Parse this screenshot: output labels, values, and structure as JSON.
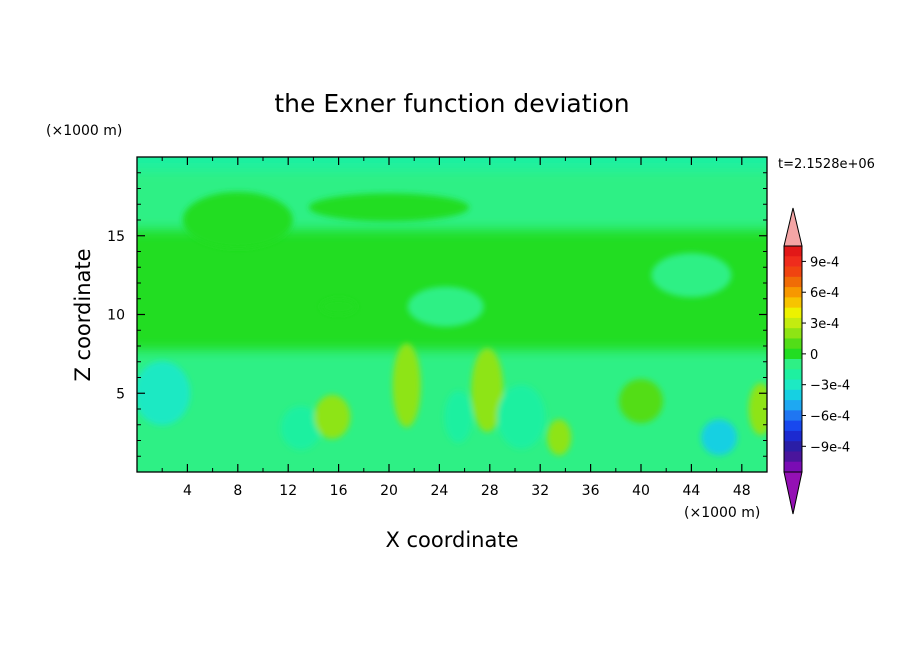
{
  "chart_data": {
    "type": "heatmap",
    "title": "the Exner function deviation",
    "xlabel": "X coordinate",
    "ylabel": "Z coordinate",
    "x_unit": "(×1000 m)",
    "y_unit": "(×1000 m)",
    "time_label": "t=2.1528e+06",
    "xlim": [
      0,
      50
    ],
    "ylim": [
      0,
      20
    ],
    "x_ticks": [
      "4",
      "8",
      "12",
      "16",
      "20",
      "24",
      "28",
      "32",
      "36",
      "40",
      "44",
      "48"
    ],
    "y_ticks": [
      "5",
      "10",
      "15"
    ],
    "colorbar": {
      "min": -0.0011,
      "max": 0.0011,
      "step": 0.0001,
      "labels": [
        "9e-4",
        "6e-4",
        "3e-4",
        "0",
        "−3e-4",
        "−6e-4",
        "−9e-4"
      ],
      "colors": [
        "#7a0cb4",
        "#4a159c",
        "#2a1ea6",
        "#1c2ad0",
        "#1848ee",
        "#1f76f2",
        "#1ea8f2",
        "#16d0e2",
        "#1de9c3",
        "#1ef0a0",
        "#2ef085",
        "#22dd22",
        "#52dd18",
        "#8ee414",
        "#c3ec10",
        "#edf200",
        "#f7c400",
        "#f79800",
        "#f06c06",
        "#f04410",
        "#ef2c1c",
        "#e21818"
      ],
      "over_color": "#f4a5a5",
      "under_color": "#9410b4"
    },
    "grid": false,
    "legend": "colorbar-right",
    "features": [
      {
        "x": 8,
        "z": 16,
        "value": 3e-05
      },
      {
        "x": 20,
        "z": 16.8,
        "value": 1e-05
      },
      {
        "x": 44,
        "z": 12.5,
        "value": -8e-05
      },
      {
        "x": 24.5,
        "z": 10.5,
        "value": -7e-05
      },
      {
        "x": 16,
        "z": 10.5,
        "value": 4e-05
      },
      {
        "x": 2,
        "z": 5,
        "value": -0.00025
      },
      {
        "x": 46.2,
        "z": 2.2,
        "value": -0.00038
      },
      {
        "x": 13,
        "z": 2.8,
        "value": -0.00015
      },
      {
        "x": 15.5,
        "z": 3.5,
        "value": 0.00022
      },
      {
        "x": 21.4,
        "z": 5.5,
        "value": 0.00025
      },
      {
        "x": 25.5,
        "z": 3.5,
        "value": -0.00014
      },
      {
        "x": 27.8,
        "z": 5.2,
        "value": 0.00027
      },
      {
        "x": 30.5,
        "z": 3.5,
        "value": -0.00015
      },
      {
        "x": 33.5,
        "z": 2.2,
        "value": 0.0002
      },
      {
        "x": 40,
        "z": 4.5,
        "value": 0.00018
      },
      {
        "x": 49.5,
        "z": 4,
        "value": 0.00022
      }
    ]
  }
}
